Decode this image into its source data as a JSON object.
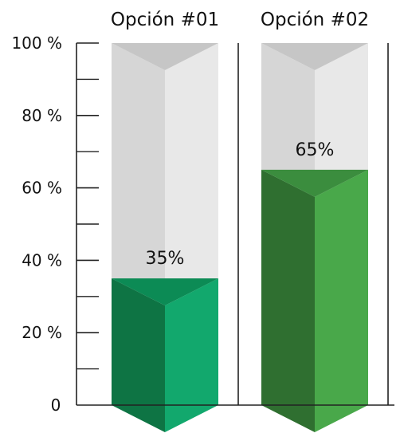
{
  "chart_data": {
    "type": "bar",
    "categories": [
      "Opción #01",
      "Opción #02"
    ],
    "values": [
      35,
      65
    ],
    "value_labels": [
      "35%",
      "65%"
    ],
    "y_ticks": [
      {
        "value": 0,
        "label": "0"
      },
      {
        "value": 20,
        "label": "20 %"
      },
      {
        "value": 40,
        "label": "40 %"
      },
      {
        "value": 60,
        "label": "60 %"
      },
      {
        "value": 80,
        "label": "80 %"
      },
      {
        "value": 100,
        "label": "100 %"
      }
    ],
    "ylim": [
      0,
      100
    ],
    "minor_ticks_step": 10,
    "grid": false,
    "legend": "none",
    "colors": {
      "empty_left": "#d6d6d6",
      "empty_right": "#e8e8e8",
      "empty_top": "#c6c6c6",
      "bars": [
        {
          "left": "#0e7444",
          "right": "#12a86d",
          "top": "#0c8b55"
        },
        {
          "left": "#2f6f30",
          "right": "#49a84a",
          "top": "#3b8d3e"
        }
      ],
      "axis": "#222222",
      "text": "#111111"
    }
  }
}
